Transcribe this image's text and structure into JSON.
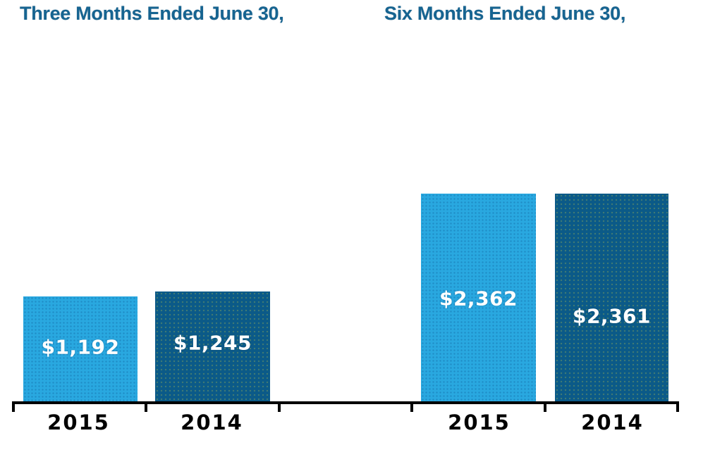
{
  "page": {
    "background": "#FFFFFF"
  },
  "chart_data": {
    "type": "bar",
    "title": "",
    "grid": false,
    "legend": "none",
    "ylim": [
      0,
      2800
    ],
    "axis": {
      "position": "bottom",
      "tick_count": 6
    },
    "colors": {
      "series_2015": "#29A8E0",
      "series_2014": "#0B5A88",
      "axis": "#000000",
      "title_text": "#166491",
      "value_text": "#FFFFFF",
      "category_text": "#000000",
      "background": "#FFFFFF"
    },
    "groups": [
      {
        "title": "Three Months Ended June 30,",
        "bars": [
          {
            "category": "2015",
            "value": 1192,
            "label": "$1,192",
            "color": "#29A8E0"
          },
          {
            "category": "2014",
            "value": 1245,
            "label": "$1,245",
            "color": "#0B5A88"
          }
        ]
      },
      {
        "title": "Six Months Ended June 30,",
        "bars": [
          {
            "category": "2015",
            "value": 2362,
            "label": "$2,362",
            "color": "#29A8E0"
          },
          {
            "category": "2014",
            "value": 2361,
            "label": "$2,361",
            "color": "#0B5A88"
          }
        ]
      }
    ]
  }
}
